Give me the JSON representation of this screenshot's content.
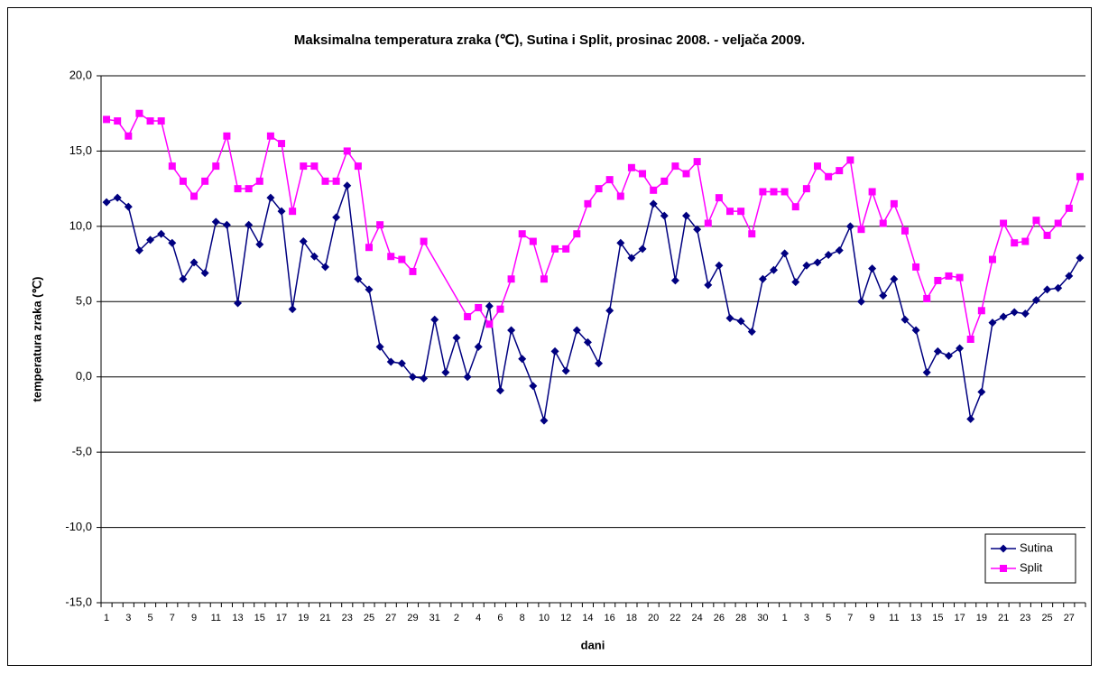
{
  "chart_data": {
    "type": "line",
    "title": "Maksimalna temperatura zraka (℃), Sutina i Split,  prosinac 2008. - veljača 2009.",
    "y_label": "temperatura zraka (℃)",
    "x_label": "dani",
    "categories": [
      "1",
      null,
      "3",
      null,
      "5",
      null,
      "7",
      null,
      "9",
      null,
      "11",
      null,
      "13",
      null,
      "15",
      null,
      "17",
      null,
      "19",
      null,
      "21",
      null,
      "23",
      null,
      "25",
      null,
      "27",
      null,
      "29",
      null,
      "31",
      null,
      "2",
      null,
      "4",
      null,
      "6",
      null,
      "8",
      null,
      "10",
      null,
      "12",
      null,
      "14",
      null,
      "16",
      null,
      "18",
      null,
      "20",
      null,
      "22",
      null,
      "24",
      null,
      "26",
      null,
      "28",
      null,
      "30",
      null,
      "1",
      null,
      "3",
      null,
      "5",
      null,
      "7",
      null,
      "9",
      null,
      "11",
      null,
      "13",
      null,
      "15",
      null,
      "17",
      null,
      "19",
      null,
      "21",
      null,
      "23",
      null,
      "25",
      null,
      "27",
      null
    ],
    "series": [
      {
        "name": "Sutina",
        "color": "#000080",
        "marker": "diamond",
        "values": [
          11.6,
          11.9,
          11.3,
          8.4,
          9.1,
          9.5,
          8.9,
          6.5,
          7.6,
          6.9,
          10.3,
          10.1,
          4.9,
          10.1,
          8.8,
          11.9,
          11.0,
          4.5,
          9.0,
          8.0,
          7.3,
          10.6,
          12.7,
          6.5,
          5.8,
          2.0,
          1.0,
          0.9,
          0.0,
          -0.1,
          3.8,
          0.3,
          2.6,
          0.0,
          2.0,
          4.7,
          -0.9,
          3.1,
          1.2,
          -0.6,
          -2.9,
          1.7,
          0.4,
          3.1,
          2.3,
          0.9,
          4.4,
          8.9,
          7.9,
          8.5,
          11.5,
          10.7,
          6.4,
          10.7,
          9.8,
          6.1,
          7.4,
          3.9,
          3.7,
          3.0,
          6.5,
          7.1,
          8.2,
          6.3,
          7.4,
          7.6,
          8.1,
          8.4,
          10.0,
          5.0,
          7.2,
          5.4,
          6.5,
          3.8,
          3.1,
          0.3,
          1.7,
          1.4,
          1.9,
          -2.8,
          -1.0,
          3.6,
          4.0,
          4.3,
          4.2,
          5.1,
          5.8,
          5.9,
          6.7,
          7.9
        ]
      },
      {
        "name": "Split",
        "color": "#ff00ff",
        "marker": "square",
        "values": [
          17.1,
          17.0,
          16.0,
          17.5,
          17.0,
          17.0,
          14.0,
          13.0,
          12.0,
          13.0,
          14.0,
          16.0,
          12.5,
          12.5,
          13.0,
          16.0,
          15.5,
          11.0,
          14.0,
          14.0,
          13.0,
          13.0,
          15.0,
          14.0,
          8.6,
          10.1,
          8.0,
          7.8,
          7.0,
          9.0,
          null,
          null,
          null,
          4.0,
          4.6,
          3.5,
          4.5,
          6.5,
          9.5,
          9.0,
          6.5,
          8.5,
          8.5,
          9.5,
          11.5,
          12.5,
          13.1,
          12.0,
          13.9,
          13.5,
          12.4,
          13.0,
          14.0,
          13.5,
          14.3,
          10.2,
          11.9,
          11.0,
          11.0,
          9.5,
          12.3,
          12.3,
          12.3,
          11.3,
          12.5,
          14.0,
          13.3,
          13.7,
          14.4,
          9.8,
          12.3,
          10.2,
          11.5,
          9.7,
          7.3,
          5.2,
          6.4,
          6.7,
          6.6,
          2.5,
          4.4,
          7.8,
          10.2,
          8.9,
          9.0,
          10.4,
          9.4,
          10.2,
          11.2,
          13.3
        ]
      }
    ],
    "span_gaps": true,
    "ylim": [
      -15,
      20
    ],
    "yticks": [
      {
        "value": -15,
        "label": "-15,0"
      },
      {
        "value": -10,
        "label": "-10,0"
      },
      {
        "value": -5,
        "label": "-5,0"
      },
      {
        "value": 0,
        "label": "0,0"
      },
      {
        "value": 5,
        "label": "5,0"
      },
      {
        "value": 10,
        "label": "10,0"
      },
      {
        "value": 15,
        "label": "15,0"
      },
      {
        "value": 20,
        "label": "20,0"
      }
    ],
    "grid": true,
    "legend": "lower right"
  }
}
